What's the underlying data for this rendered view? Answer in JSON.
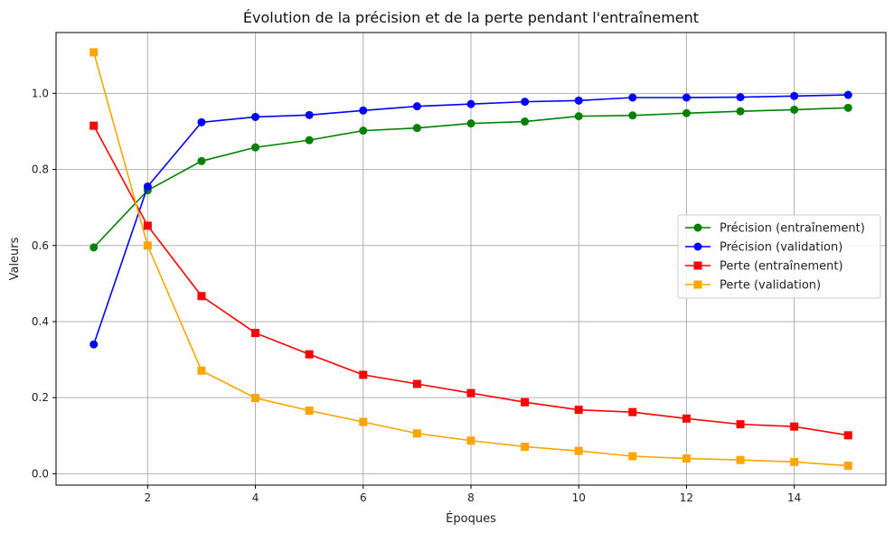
{
  "chart_data": {
    "type": "line",
    "title": "Évolution de la précision et de la perte pendant l'entraînement",
    "xlabel": "Époques",
    "ylabel": "Valeurs",
    "x": [
      1,
      2,
      3,
      4,
      5,
      6,
      7,
      8,
      9,
      10,
      11,
      12,
      13,
      14,
      15
    ],
    "xlim": [
      0.3,
      15.7
    ],
    "ylim": [
      -0.03,
      1.16
    ],
    "xticks": [
      2,
      4,
      6,
      8,
      10,
      12,
      14
    ],
    "yticks": [
      0.0,
      0.2,
      0.4,
      0.6,
      0.8,
      1.0
    ],
    "xtick_labels": [
      "2",
      "4",
      "6",
      "8",
      "10",
      "12",
      "14"
    ],
    "ytick_labels": [
      "0.0",
      "0.2",
      "0.4",
      "0.6",
      "0.8",
      "1.0"
    ],
    "grid": true,
    "legend_position": "center-right",
    "series": [
      {
        "name": "Précision (entraînement)",
        "color": "#008000",
        "marker": "circle",
        "values": [
          0.595,
          0.745,
          0.822,
          0.858,
          0.877,
          0.902,
          0.909,
          0.921,
          0.926,
          0.94,
          0.942,
          0.948,
          0.953,
          0.957,
          0.962
        ]
      },
      {
        "name": "Précision (validation)",
        "color": "#0000ff",
        "marker": "circle",
        "values": [
          0.34,
          0.755,
          0.924,
          0.938,
          0.943,
          0.955,
          0.966,
          0.972,
          0.978,
          0.981,
          0.989,
          0.989,
          0.99,
          0.993,
          0.996
        ]
      },
      {
        "name": "Perte (entraînement)",
        "color": "#ff0000",
        "marker": "square",
        "values": [
          0.915,
          0.652,
          0.467,
          0.37,
          0.314,
          0.26,
          0.236,
          0.212,
          0.188,
          0.168,
          0.162,
          0.145,
          0.13,
          0.124,
          0.101
        ]
      },
      {
        "name": "Perte (validation)",
        "color": "#ffa500",
        "marker": "square",
        "values": [
          1.108,
          0.6,
          0.271,
          0.199,
          0.166,
          0.136,
          0.106,
          0.087,
          0.071,
          0.06,
          0.046,
          0.04,
          0.036,
          0.031,
          0.021
        ]
      }
    ]
  }
}
